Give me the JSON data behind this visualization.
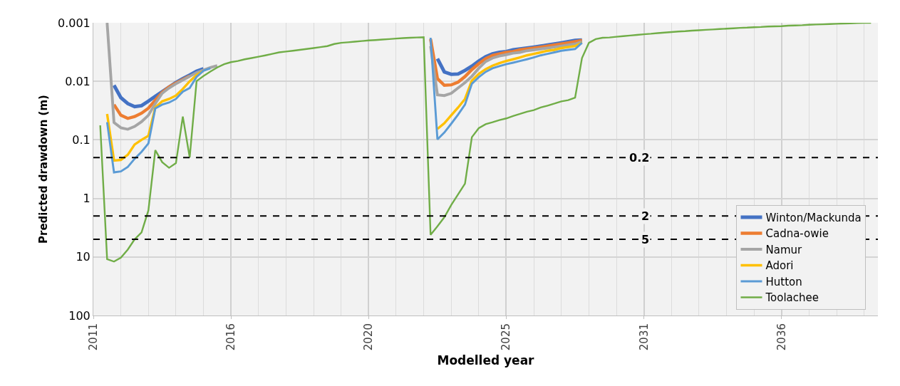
{
  "chart_data": {
    "type": "line",
    "xlabel": "Modelled year",
    "ylabel": "Predicted drawdown (m)",
    "log": true,
    "grid": true,
    "legend": "bottom right",
    "line_style": "solid",
    "marker": "none",
    "ylim": [
      100,
      0.001
    ],
    "yticks": [
      0.001,
      0.01,
      0.1,
      1,
      10,
      100
    ],
    "categories": [
      "2011",
      null,
      null,
      null,
      null,
      null,
      null,
      null,
      null,
      null,
      null,
      null,
      null,
      null,
      null,
      null,
      null,
      null,
      null,
      null,
      "2016",
      null,
      null,
      null,
      null,
      null,
      null,
      null,
      null,
      null,
      null,
      null,
      null,
      null,
      null,
      null,
      null,
      null,
      null,
      null,
      "2020",
      null,
      null,
      null,
      null,
      null,
      null,
      null,
      null,
      null,
      null,
      null,
      null,
      null,
      null,
      null,
      null,
      null,
      null,
      null,
      "2025",
      null,
      null,
      null,
      null,
      null,
      null,
      null,
      null,
      null,
      null,
      null,
      null,
      null,
      null,
      null,
      null,
      null,
      null,
      null,
      "2031",
      null,
      null,
      null,
      null,
      null,
      null,
      null,
      null,
      null,
      null,
      null,
      null,
      null,
      null,
      null,
      null,
      null,
      null,
      null,
      "2036",
      null,
      null,
      null,
      null,
      null,
      null,
      null,
      null,
      null,
      null,
      null,
      null,
      null,
      null
    ],
    "ref_lines": [
      {
        "axis": "y",
        "value": 0.2,
        "label": "0.2",
        "color": "#000000",
        "line_style": "dashed"
      },
      {
        "axis": "y",
        "value": 2,
        "label": "2",
        "color": "#000000",
        "line_style": "dashed"
      },
      {
        "axis": "y",
        "value": 5,
        "label": "5",
        "color": "#000000",
        "line_style": "dashed"
      }
    ],
    "series": [
      {
        "name": "Winton/Mackunda",
        "color": "#4472c4",
        "values": [
          null,
          null,
          null,
          0.0117,
          0.019,
          0.024,
          0.027,
          0.026,
          0.0218,
          0.018,
          0.015,
          0.0125,
          0.0105,
          0.009,
          0.0078,
          0.0067,
          0.0061,
          null,
          null,
          null,
          null,
          null,
          null,
          null,
          null,
          null,
          null,
          null,
          null,
          null,
          null,
          null,
          null,
          null,
          null,
          null,
          null,
          null,
          null,
          null,
          null,
          null,
          null,
          null,
          null,
          null,
          null,
          null,
          null,
          null,
          0.0041,
          0.0069,
          0.0076,
          0.0075,
          0.0065,
          0.0055,
          0.0045,
          0.0038,
          0.0034,
          0.0032,
          0.0031,
          0.0029,
          0.0028,
          0.0027,
          0.0026,
          0.0025,
          0.0024,
          0.0023,
          0.0022,
          0.0021,
          0.002,
          0.00197,
          null,
          null,
          null,
          null,
          null,
          null,
          null,
          null,
          null,
          null,
          null,
          null,
          null,
          null,
          null,
          null,
          null,
          null,
          null,
          null,
          null,
          null,
          null,
          null,
          null,
          null,
          null,
          null,
          null,
          null,
          null,
          null,
          null,
          null,
          null,
          null,
          null,
          null,
          null,
          null,
          null,
          null,
          null
        ]
      },
      {
        "name": "Cadna-owie",
        "color": "#ed7d31",
        "values": [
          null,
          null,
          null,
          0.025,
          0.038,
          0.043,
          0.04,
          0.035,
          0.0288,
          0.021,
          0.0155,
          0.0125,
          0.0107,
          0.0093,
          0.0081,
          null,
          null,
          null,
          null,
          null,
          null,
          null,
          null,
          null,
          null,
          null,
          null,
          null,
          null,
          null,
          null,
          null,
          null,
          null,
          null,
          null,
          null,
          null,
          null,
          null,
          null,
          null,
          null,
          null,
          null,
          null,
          null,
          null,
          null,
          0.0019,
          0.009,
          0.0117,
          0.0115,
          0.0103,
          0.0083,
          0.0063,
          0.005,
          0.0041,
          0.0036,
          0.0034,
          0.0032,
          0.0031,
          0.0029,
          0.0028,
          0.0027,
          0.0026,
          0.0025,
          0.0024,
          0.0023,
          0.0022,
          0.0021,
          0.002,
          null,
          null,
          null,
          null,
          null,
          null,
          null,
          null,
          null,
          null,
          null,
          null,
          null,
          null,
          null,
          null,
          null,
          null,
          null,
          null,
          null,
          null,
          null,
          null,
          null,
          null,
          null,
          null,
          null,
          null,
          null,
          null,
          null,
          null,
          null,
          null,
          null,
          null,
          null,
          null,
          null,
          null,
          null
        ]
      },
      {
        "name": "Namur",
        "color": "#a5a5a5",
        "values": [
          null,
          null,
          0.001,
          0.0505,
          0.062,
          0.066,
          0.059,
          0.049,
          0.038,
          0.024,
          0.016,
          0.013,
          0.011,
          0.0095,
          0.0082,
          0.0071,
          0.0064,
          0.0058,
          0.0054,
          null,
          null,
          null,
          null,
          null,
          null,
          null,
          null,
          null,
          null,
          null,
          null,
          null,
          null,
          null,
          null,
          null,
          null,
          null,
          null,
          null,
          null,
          null,
          null,
          null,
          null,
          null,
          null,
          null,
          null,
          0.0025,
          0.017,
          0.0175,
          0.016,
          0.013,
          0.0105,
          0.0082,
          0.006,
          0.0046,
          0.004,
          0.0037,
          0.0035,
          0.0033,
          0.0032,
          0.003,
          0.0029,
          0.0028,
          0.0027,
          0.0026,
          0.0025,
          0.0024,
          0.0023,
          0.0021,
          null,
          null,
          null,
          null,
          null,
          null,
          null,
          null,
          null,
          null,
          null,
          null,
          null,
          null,
          null,
          null,
          null,
          null,
          null,
          null,
          null,
          null,
          null,
          null,
          null,
          null,
          null,
          null,
          null,
          null,
          null,
          null,
          null,
          null,
          null,
          null,
          null,
          null,
          null,
          null,
          null,
          null,
          null
        ]
      },
      {
        "name": "Adori",
        "color": "#ffc000",
        "values": [
          null,
          null,
          0.036,
          0.225,
          0.22,
          0.18,
          0.12,
          0.1,
          0.085,
          0.028,
          0.022,
          0.02,
          0.0175,
          0.0135,
          0.01,
          0.0078,
          0.0066,
          null,
          null,
          null,
          null,
          null,
          null,
          null,
          null,
          null,
          null,
          null,
          null,
          null,
          null,
          null,
          null,
          null,
          null,
          null,
          null,
          null,
          null,
          null,
          null,
          null,
          null,
          null,
          null,
          null,
          null,
          null,
          null,
          null,
          0.065,
          0.052,
          0.038,
          0.028,
          0.02,
          0.0097,
          0.0075,
          0.0062,
          0.0054,
          0.0049,
          0.0045,
          0.0042,
          0.0039,
          0.0036,
          0.0034,
          0.0032,
          0.003,
          0.0029,
          0.0027,
          0.0026,
          0.0025,
          0.0022,
          null,
          null,
          null,
          null,
          null,
          null,
          null,
          null,
          null,
          null,
          null,
          null,
          null,
          null,
          null,
          null,
          null,
          null,
          null,
          null,
          null,
          null,
          null,
          null,
          null,
          null,
          null,
          null,
          null,
          null,
          null,
          null,
          null,
          null,
          null,
          null,
          null,
          null,
          null,
          null,
          null,
          null,
          null
        ]
      },
      {
        "name": "Hutton",
        "color": "#5b9bd5",
        "values": [
          null,
          null,
          0.05,
          0.359,
          0.345,
          0.29,
          0.21,
          0.16,
          0.115,
          0.029,
          0.025,
          0.023,
          0.02,
          0.015,
          0.013,
          0.0084,
          0.0066,
          0.006,
          null,
          null,
          null,
          null,
          null,
          null,
          null,
          null,
          null,
          null,
          null,
          null,
          null,
          null,
          null,
          null,
          null,
          null,
          null,
          null,
          null,
          null,
          null,
          null,
          null,
          null,
          null,
          null,
          null,
          null,
          null,
          0.0018,
          0.098,
          0.075,
          0.053,
          0.037,
          0.025,
          0.011,
          0.0085,
          0.0069,
          0.006,
          0.0055,
          0.0051,
          0.0048,
          0.0045,
          0.0042,
          0.0039,
          0.0036,
          0.0034,
          0.0032,
          0.003,
          0.0029,
          0.0028,
          0.0022,
          null,
          null,
          null,
          null,
          null,
          null,
          null,
          null,
          null,
          null,
          null,
          null,
          null,
          null,
          null,
          null,
          null,
          null,
          null,
          null,
          null,
          null,
          null,
          null,
          null,
          null,
          null,
          null,
          null,
          null,
          null,
          null,
          null,
          null,
          null,
          null,
          null,
          null,
          null,
          null,
          null,
          null,
          null
        ]
      },
      {
        "name": "Toolachee",
        "color": "#70ad47",
        "values": [
          null,
          0.0565,
          10.9,
          12,
          10.3,
          7.5,
          5,
          3.8,
          1.6,
          0.15,
          0.24,
          0.3,
          0.25,
          0.04,
          0.2,
          0.0099,
          0.0081,
          0.0068,
          0.0058,
          0.0051,
          0.0047,
          0.0045,
          0.0042,
          0.004,
          0.0038,
          0.0036,
          0.0034,
          0.0032,
          0.0031,
          0.003,
          0.0029,
          0.0028,
          0.0027,
          0.0026,
          0.0025,
          0.0023,
          0.0022,
          0.00215,
          0.0021,
          0.00205,
          0.002,
          0.00197,
          0.00193,
          0.0019,
          0.00186,
          0.00183,
          0.0018,
          0.00178,
          0.00176,
          4.2,
          3,
          2.1,
          1.3,
          0.85,
          0.56,
          0.09,
          0.063,
          0.054,
          0.05,
          0.046,
          0.043,
          0.039,
          0.036,
          0.033,
          0.031,
          0.028,
          0.026,
          0.024,
          0.022,
          0.021,
          0.019,
          0.004,
          0.0022,
          0.0019,
          0.0018,
          0.00178,
          0.00173,
          0.00169,
          0.00165,
          0.00161,
          0.00157,
          0.00154,
          0.0015,
          0.00147,
          0.00144,
          0.00141,
          0.00139,
          0.00136,
          0.00134,
          0.00132,
          0.0013,
          0.00128,
          0.00126,
          0.00124,
          0.00122,
          0.00121,
          0.00119,
          0.00118,
          0.00116,
          0.00115,
          0.00114,
          0.00112,
          0.00111,
          0.0011,
          0.00108,
          0.00107,
          0.00106,
          0.00105,
          0.00104,
          0.00103,
          0.00102,
          0.00101,
          0.001,
          0.001,
          null
        ]
      }
    ]
  }
}
